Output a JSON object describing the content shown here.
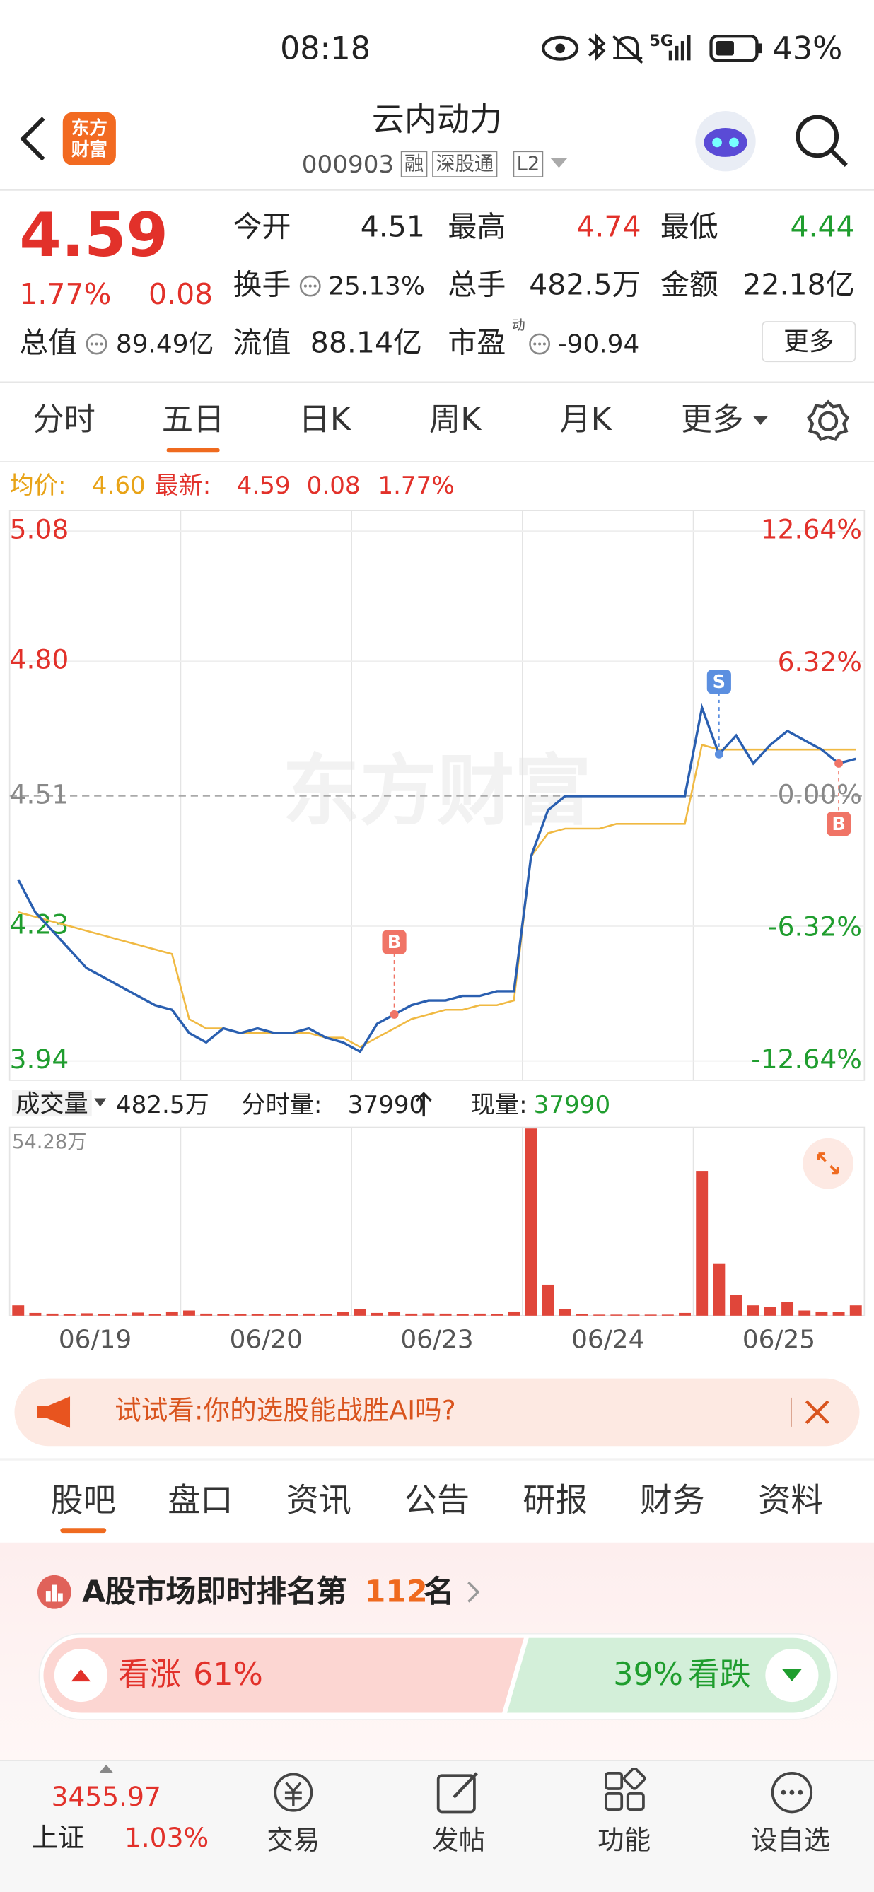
{
  "status_bar": {
    "time": "08:18",
    "network": "5G",
    "battery": "43%"
  },
  "header": {
    "logo": "东方财富",
    "title": "云内动力",
    "code": "000903",
    "tags": [
      "融",
      "深股通",
      "L2"
    ]
  },
  "quote": {
    "price": "4.59",
    "change_pct": "1.77%",
    "change": "0.08",
    "stats": [
      {
        "label": "今开",
        "value": "4.51"
      },
      {
        "label": "最高",
        "value": "4.74"
      },
      {
        "label": "最低",
        "value": "4.44"
      },
      {
        "label": "换手",
        "value": "25.13%"
      },
      {
        "label": "总手",
        "value": "482.5万"
      },
      {
        "label": "金额",
        "value": "22.18亿"
      },
      {
        "label": "总值",
        "value": "89.49亿"
      },
      {
        "label": "流值",
        "value": "88.14亿"
      },
      {
        "label": "市盈",
        "note": "动",
        "value": "-90.94"
      }
    ],
    "more_button": "更多"
  },
  "period_tabs": {
    "items": [
      "分时",
      "五日",
      "日K",
      "周K",
      "月K",
      "更多"
    ],
    "active": 1
  },
  "legend": {
    "avg_label": "均价:",
    "avg_value": "4.60",
    "last_label": "最新:",
    "last_value": "4.59",
    "last_change": "0.08",
    "last_pct": "1.77%"
  },
  "watermark": "东方财富",
  "annotations": [
    "B",
    "S",
    "B"
  ],
  "volume_header": {
    "label": "成交量",
    "total": "482.5万",
    "tick_label": "分时量:",
    "tick_value": "37990",
    "now_label": "现量:",
    "now_value": "37990"
  },
  "chart_data": [
    {
      "type": "line",
      "ylim": [
        3.94,
        5.08
      ],
      "yticks": [
        5.08,
        {
          "value": 4.8,
          "label": "4.80"
        },
        4.51,
        4.23,
        3.94
      ],
      "y2lim": [
        -12.64,
        12.64
      ],
      "y2ticks": [
        {
          "value": 12.64,
          "label": "12.64%"
        },
        {
          "value": 6.32,
          "label": "6.32%"
        },
        {
          "value": 0,
          "label": "0.00%"
        },
        {
          "value": -6.32,
          "label": "-6.32%"
        },
        {
          "value": -12.64,
          "label": "-12.64%"
        }
      ],
      "reference": 4.51,
      "grid": true,
      "series": [
        {
          "color": "#2a5fb0",
          "values": [
            4.33,
            4.26,
            4.22,
            4.18,
            4.14,
            4.12,
            4.1,
            4.08,
            4.06,
            4.05,
            4.0,
            3.98,
            4.01,
            4.0,
            4.01,
            4.0,
            4.0,
            4.01,
            3.99,
            3.98,
            3.96,
            4.02,
            4.04,
            4.06,
            4.07,
            4.07,
            4.08,
            4.08,
            4.09,
            4.09,
            4.38,
            4.48,
            4.51,
            4.51,
            4.51,
            4.51,
            4.51,
            4.51,
            4.51,
            4.51,
            4.7,
            4.6,
            4.64,
            4.58,
            4.62,
            4.65,
            4.63,
            4.61,
            4.58,
            4.59
          ]
        },
        {
          "color": "#f0b942",
          "values": [
            4.26,
            4.25,
            4.24,
            4.23,
            4.22,
            4.21,
            4.2,
            4.19,
            4.18,
            4.17,
            4.03,
            4.01,
            4.01,
            4.0,
            4.0,
            4.0,
            4.0,
            4.0,
            3.99,
            3.99,
            3.97,
            3.99,
            4.01,
            4.03,
            4.04,
            4.05,
            4.05,
            4.06,
            4.06,
            4.07,
            4.38,
            4.43,
            4.44,
            4.44,
            4.44,
            4.45,
            4.45,
            4.45,
            4.45,
            4.45,
            4.62,
            4.61,
            4.61,
            4.61,
            4.61,
            4.61,
            4.61,
            4.61,
            4.61,
            4.61
          ]
        }
      ]
    },
    {
      "type": "bar",
      "ylim": [
        0,
        542800
      ],
      "yticks": [
        {
          "value": 542800,
          "label": "54.28万"
        }
      ],
      "xticks": [
        "06/19",
        "06/20",
        "06/23",
        "06/24",
        "06/25"
      ],
      "color": "#e0463a",
      "values": [
        30000,
        8000,
        6000,
        5000,
        7000,
        5000,
        6000,
        9000,
        5000,
        12000,
        15000,
        6000,
        5000,
        4000,
        5000,
        4000,
        5000,
        6000,
        5000,
        10000,
        20000,
        8000,
        10000,
        6000,
        7000,
        6000,
        5000,
        6000,
        5000,
        12000,
        542800,
        90000,
        20000,
        5000,
        3000,
        3000,
        3000,
        3000,
        3000,
        8000,
        420000,
        150000,
        60000,
        30000,
        25000,
        40000,
        15000,
        12000,
        10000,
        30000
      ]
    }
  ],
  "banner": {
    "text": "试试看:你的选股能战胜AI吗?"
  },
  "content_tabs": {
    "items": [
      "股吧",
      "盘口",
      "资讯",
      "公告",
      "研报",
      "财务",
      "资料"
    ],
    "active": 0
  },
  "ranking": {
    "prefix": "A股市场即时排名第",
    "rank": "112",
    "suffix": "名"
  },
  "sentiment": {
    "up_label": "看涨",
    "up_value": "61%",
    "down_value": "39%",
    "down_label": "看跌"
  },
  "bottom_nav": {
    "index_value": "3455.97",
    "index_name": "上证",
    "index_pct": "1.03%",
    "items": [
      "交易",
      "发帖",
      "功能",
      "设自选"
    ]
  }
}
